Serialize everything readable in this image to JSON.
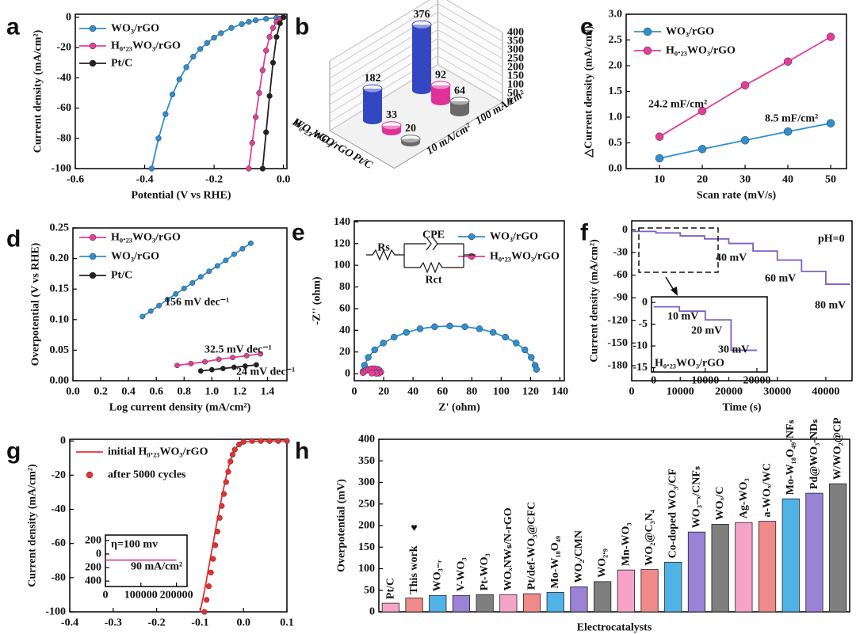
{
  "chart_data": [
    {
      "label": "a",
      "type": "line",
      "xlabel": "Potential (V vs RHE)",
      "ylabel": "Current density (mA/cm²)",
      "xlim": [
        -0.6,
        0.01
      ],
      "ylim": [
        -100,
        2
      ],
      "xticks": [
        -0.6,
        -0.4,
        -0.2,
        {
          "value": 0,
          "label": "0.0"
        }
      ],
      "yticks": [
        0,
        -20,
        -40,
        -60,
        -80,
        -100
      ],
      "legend": "upper left",
      "series": [
        {
          "name": "WO₃/rGO",
          "color": "#2f8fd0",
          "line": true,
          "marker": true,
          "x": [
            0,
            -0.02,
            -0.05,
            -0.08,
            -0.1,
            -0.12,
            -0.15,
            -0.18,
            -0.2,
            -0.22,
            -0.24,
            -0.26,
            -0.28,
            -0.3,
            -0.32,
            -0.34,
            -0.36,
            -0.38
          ],
          "values": [
            0,
            -0.3,
            -1,
            -2,
            -3,
            -4.5,
            -7,
            -10.5,
            -13.5,
            -17,
            -21,
            -26,
            -33,
            -41,
            -51,
            -64,
            -80,
            -100
          ]
        },
        {
          "name": "H₀.₂₃WO₃/rGO",
          "color": "#e23f98",
          "line": true,
          "marker": true,
          "x": [
            0,
            -0.01,
            -0.02,
            -0.03,
            -0.04,
            -0.05,
            -0.06,
            -0.07,
            -0.08,
            -0.09,
            -0.1
          ],
          "values": [
            0,
            -1,
            -3,
            -7,
            -13,
            -22,
            -35,
            -50,
            -66,
            -83,
            -100
          ]
        },
        {
          "name": "Pt/C",
          "color": "#222222",
          "line": true,
          "marker": true,
          "x": [
            0,
            -0.01,
            -0.02,
            -0.03,
            -0.04,
            -0.05,
            -0.06
          ],
          "values": [
            0,
            -4,
            -13,
            -30,
            -52,
            -76,
            -100
          ]
        }
      ]
    },
    {
      "label": "b",
      "type": "bar3d",
      "categories": [
        "WO₃/rGO",
        "H₀.₂₃WO₃/rGO",
        "Pt/C"
      ],
      "colors": [
        "#3447c2",
        "#e0309a",
        "#6a6a6a"
      ],
      "series": [
        {
          "name": "10 mA/cm²",
          "values": [
            182,
            33,
            20
          ]
        },
        {
          "name": "100 mA/cm²",
          "values": [
            376,
            92,
            64
          ]
        }
      ],
      "zlim": [
        0,
        400
      ],
      "zticks": [
        0,
        50,
        100,
        150,
        200,
        250,
        300,
        350,
        400
      ]
    },
    {
      "label": "c",
      "type": "line",
      "xlabel": "Scan rate (mV/s)",
      "ylabel": "△Current density (mA/cm²)",
      "xlim": [
        2.2,
        53.7
      ],
      "ylim": [
        0,
        3
      ],
      "xticks": [
        10,
        20,
        30,
        40,
        50
      ],
      "yticks": [
        {
          "value": 0,
          "label": "0.0"
        },
        0.5,
        {
          "value": 1,
          "label": "1.0"
        },
        1.5,
        {
          "value": 2,
          "label": "2.0"
        },
        2.5,
        {
          "value": 3,
          "label": "3.0"
        }
      ],
      "legend": "upper left",
      "series": [
        {
          "name": "WO₃/rGO",
          "color": "#2f8fd0",
          "line": true,
          "marker": true,
          "x": [
            10,
            20,
            30,
            40,
            50
          ],
          "values": [
            0.2,
            0.38,
            0.55,
            0.72,
            0.88
          ]
        },
        {
          "name": "H₀.₂₃WO₃/rGO",
          "color": "#e23f98",
          "line": true,
          "marker": true,
          "x": [
            10,
            20,
            30,
            40,
            50
          ],
          "values": [
            0.62,
            1.12,
            1.62,
            2.08,
            2.56
          ]
        }
      ],
      "annotations": [
        {
          "text": "24.2 mF/cm²",
          "color": "#e0308f"
        },
        {
          "text": "8.5 mF/cm²",
          "color": "#2f8fd0"
        }
      ]
    },
    {
      "label": "d",
      "type": "line",
      "xlabel": "Log current density (mA/cm²)",
      "ylabel": "Overpotential (V vs RHE)",
      "xlim": [
        0,
        1.54
      ],
      "ylim": [
        0,
        0.25
      ],
      "xticks": [
        {
          "value": 0,
          "label": "0.0"
        },
        0.2,
        0.4,
        0.6,
        0.8,
        {
          "value": 1,
          "label": "1.0"
        },
        1.2,
        1.4
      ],
      "yticks": [
        {
          "value": 0,
          "label": "0.00"
        },
        0.05,
        {
          "value": 0.1,
          "label": "0.10"
        },
        0.15,
        {
          "value": 0.2,
          "label": "0.20"
        },
        0.25
      ],
      "legend": "upper left",
      "series": [
        {
          "name": "H₀.₂₃WO₃/rGO",
          "color": "#e23f98",
          "line": true,
          "marker": true,
          "x": [
            0.75,
            0.85,
            0.95,
            1.05,
            1.15,
            1.25,
            1.35
          ],
          "values": [
            0.025,
            0.028,
            0.031,
            0.035,
            0.038,
            0.041,
            0.044
          ]
        },
        {
          "name": "WO₃/rGO",
          "color": "#2f8fd0",
          "line": true,
          "marker": true,
          "x": [
            0.5,
            0.56,
            0.62,
            0.68,
            0.74,
            0.8,
            0.86,
            0.92,
            0.98,
            1.04,
            1.1,
            1.16,
            1.22,
            1.28
          ],
          "values": [
            0.105,
            0.114,
            0.123,
            0.133,
            0.142,
            0.151,
            0.16,
            0.17,
            0.179,
            0.188,
            0.197,
            0.207,
            0.216,
            0.225
          ]
        },
        {
          "name": "Pt/C",
          "color": "#222222",
          "line": true,
          "marker": true,
          "x": [
            0.92,
            1.0,
            1.08,
            1.16,
            1.24,
            1.32
          ],
          "values": [
            0.016,
            0.018,
            0.02,
            0.022,
            0.024,
            0.026
          ]
        }
      ],
      "annotations": [
        {
          "text": "156 mV dec⁻¹",
          "color": "#2f8fd0"
        },
        {
          "text": "32.5 mV dec⁻¹",
          "color": "#e0308f"
        },
        {
          "text": "24 mV dec⁻¹",
          "color": "#222222"
        }
      ]
    },
    {
      "label": "e",
      "type": "line",
      "xlabel": "Z' (ohm)",
      "ylabel": "-Z'' (ohm)",
      "xlim": [
        0,
        143
      ],
      "ylim": [
        -6.5,
        141
      ],
      "xticks": [
        0,
        20,
        40,
        60,
        80,
        100,
        120,
        140
      ],
      "yticks": [
        0,
        20,
        40,
        60,
        80,
        100,
        120,
        140
      ],
      "legend": "upper right",
      "series": [
        {
          "name": "WO₃/rGO",
          "color": "#2f8fd0",
          "line": true,
          "marker": true,
          "x": [
            6,
            6.9,
            9.5,
            13.9,
            19.8,
            27.1,
            35.5,
            44.8,
            54.7,
            65,
            75.3,
            85.2,
            94.5,
            102.9,
            110.2,
            116.1,
            120.5,
            123.1,
            124
          ],
          "values": [
            2,
            7.7,
            15,
            22,
            28.3,
            33.7,
            38.1,
            41.4,
            43.3,
            44,
            43.3,
            41.4,
            38.1,
            33.7,
            28.3,
            22,
            15,
            7.7,
            4
          ]
        },
        {
          "name": "H₀.₂₃WO₃/rGO",
          "color": "#e23f98",
          "line": true,
          "marker": true,
          "x": [
            6,
            8,
            10,
            12,
            14,
            16,
            17,
            18,
            17,
            15,
            12
          ],
          "values": [
            1,
            3,
            4,
            4.5,
            4.5,
            4,
            3,
            1.5,
            0.5,
            0.3,
            0.5
          ]
        }
      ],
      "annotations": [
        {
          "text": "Rs"
        },
        {
          "text": "CPE"
        },
        {
          "text": "Rct"
        }
      ]
    },
    {
      "label": "f",
      "type": "line",
      "xlabel": "Time (s)",
      "ylabel": "Current density (mA/cm²)",
      "xlim": [
        0,
        45400
      ],
      "ylim": [
        -200,
        12
      ],
      "xticks": [
        0,
        10000,
        20000,
        30000,
        40000
      ],
      "yticks": [
        0,
        -30,
        -60,
        -90,
        -120,
        -150,
        -180
      ],
      "color": "#7e5fc0",
      "x": [
        0,
        5000,
        5000,
        10000,
        10000,
        15000,
        15000,
        20000,
        20000,
        25000,
        25000,
        30000,
        30000,
        35000,
        35000,
        40000,
        40000,
        45000
      ],
      "values": [
        -2,
        -2,
        -4,
        -4,
        -8,
        -8,
        -12,
        -12,
        -18,
        -18,
        -28,
        -28,
        -40,
        -40,
        -55,
        -55,
        -72,
        -72
      ],
      "annotations": [
        {
          "text": "pH=0"
        },
        {
          "text": "40 mV"
        },
        {
          "text": "60 mV"
        },
        {
          "text": "80 mV"
        }
      ],
      "inset": {
        "xlim": [
          -400,
          22000
        ],
        "ylim": [
          -16,
          1.3
        ],
        "xticks": [
          0,
          10000,
          20000
        ],
        "yticks": [
          0,
          -5,
          -10,
          -15
        ],
        "color": "#7e5fc0",
        "x": [
          0,
          5000,
          5000,
          10000,
          10000,
          15000,
          15000,
          20000
        ],
        "values": [
          -1,
          -1,
          -2,
          -2,
          -4,
          -4,
          -11,
          -11
        ],
        "annotations": [
          {
            "text": "10 mV"
          },
          {
            "text": "20 mV"
          },
          {
            "text": "30 mV"
          },
          {
            "text": "H₀.₂₃WO₃/rGO",
            "color": "#7e5fc0"
          }
        ]
      }
    },
    {
      "label": "g",
      "type": "line",
      "xlabel": "Potential (V vs RHE)",
      "ylabel": "Current density (mA/cm²)",
      "xlim": [
        -0.4,
        0.1
      ],
      "ylim": [
        -100,
        1
      ],
      "xticks": [
        -0.4,
        -0.3,
        -0.2,
        -0.1,
        {
          "value": 0,
          "label": "0.0"
        },
        0.1
      ],
      "yticks": [
        0,
        -20,
        -40,
        -60,
        -80,
        -100
      ],
      "legend": "upper left",
      "series": [
        {
          "name": "initial H₀.₂₃WO₃/rGO",
          "color": "#e83030",
          "line": true,
          "marker": false,
          "x": [
            -0.1,
            -0.09,
            -0.08,
            -0.07,
            -0.06,
            -0.05,
            -0.04,
            -0.03,
            -0.02,
            -0.01,
            0,
            0.05,
            0.1
          ],
          "values": [
            -100,
            -88,
            -74,
            -60,
            -46,
            -33,
            -21,
            -11,
            -5,
            -2,
            -0.5,
            0,
            0
          ]
        },
        {
          "name": "after 5000 cycles",
          "color": "#e83030",
          "line": false,
          "marker": true,
          "x": [
            -0.09,
            -0.085,
            -0.08,
            -0.075,
            -0.07,
            -0.065,
            -0.06,
            -0.055,
            -0.05,
            -0.045,
            -0.04,
            -0.035,
            -0.03,
            -0.025,
            -0.02,
            -0.01,
            0,
            0.02,
            0.04,
            0.06,
            0.08,
            0.1
          ],
          "values": [
            -100,
            -93,
            -85,
            -77,
            -69,
            -61,
            -53,
            -45,
            -38,
            -31,
            -24,
            -18,
            -12,
            -8,
            -5,
            -2,
            -0.5,
            0,
            0,
            0,
            0,
            0
          ]
        }
      ],
      "inset": {
        "xlim": [
          0,
          230000
        ],
        "ylim": [
          -480,
          280
        ],
        "xticks": [
          0,
          100000,
          200000
        ],
        "yticks": [
          200,
          0,
          {
            "value": -200,
            "label": "200"
          },
          {
            "value": -400,
            "label": "400"
          }
        ],
        "color": "#e040a0",
        "x": [
          0,
          200000
        ],
        "values": [
          -90,
          -90
        ],
        "annotations": [
          {
            "text": "η=100 mv"
          },
          {
            "text": "90 mA/cm²",
            "color": "#e040a0"
          }
        ]
      }
    },
    {
      "label": "h",
      "type": "bar",
      "xlabel": "Electrocatalysts",
      "ylabel": "Overpotential (mV)",
      "ylim": [
        0,
        400
      ],
      "yticks": [
        0,
        50,
        100,
        150,
        200,
        250,
        300,
        350,
        400
      ],
      "categories": [
        "Pt/C",
        "This work",
        "WO₃₋ᵣ",
        "V-WO₃",
        "Pt-WO₃",
        "WOₓNWₛ/N-rGO",
        "Pt/def-WO₃@CFC",
        "Mo-W₁₈O₄₉",
        "WO₂/CMN",
        "WO₂.₉",
        "Mn-WO₃",
        "WO₂@C₃N₄",
        "Co-doped WO₃/CF",
        "WO₃₋ₓ/CNFₛ",
        "WOₓ/C",
        "Ag-WO₃",
        "a-WOₓ/WC",
        "Mo-W₁₈O₄₉-NFₛ",
        "Pd@WO₃-NDₛ",
        "W/WO₂@CP"
      ],
      "values": [
        20,
        32,
        38,
        38,
        40,
        40,
        42,
        45,
        58,
        70,
        97,
        98,
        115,
        185,
        203,
        207,
        210,
        262,
        275,
        297
      ],
      "colors": [
        "#f5a3c7",
        "#f08a8a",
        "#4fb3e8",
        "#9a82d6",
        "#7f7f7f",
        "#f5a3c7",
        "#f08a8a",
        "#4fb3e8",
        "#9a82d6",
        "#7f7f7f",
        "#f5a3c7",
        "#f08a8a",
        "#4fb3e8",
        "#9a82d6",
        "#7f7f7f",
        "#f5a3c7",
        "#f08a8a",
        "#4fb3e8",
        "#9a82d6",
        "#7f7f7f"
      ],
      "label_colors": [
        "#111111",
        "#e8303a",
        "#111111",
        "#111111",
        "#111111",
        "#111111",
        "#111111",
        "#111111",
        "#111111",
        "#111111",
        "#111111",
        "#111111",
        "#111111",
        "#111111",
        "#111111",
        "#111111",
        "#111111",
        "#111111",
        "#111111",
        "#111111"
      ],
      "annotations": [
        {
          "text": "♥",
          "color": "#e84a5f"
        }
      ]
    }
  ]
}
